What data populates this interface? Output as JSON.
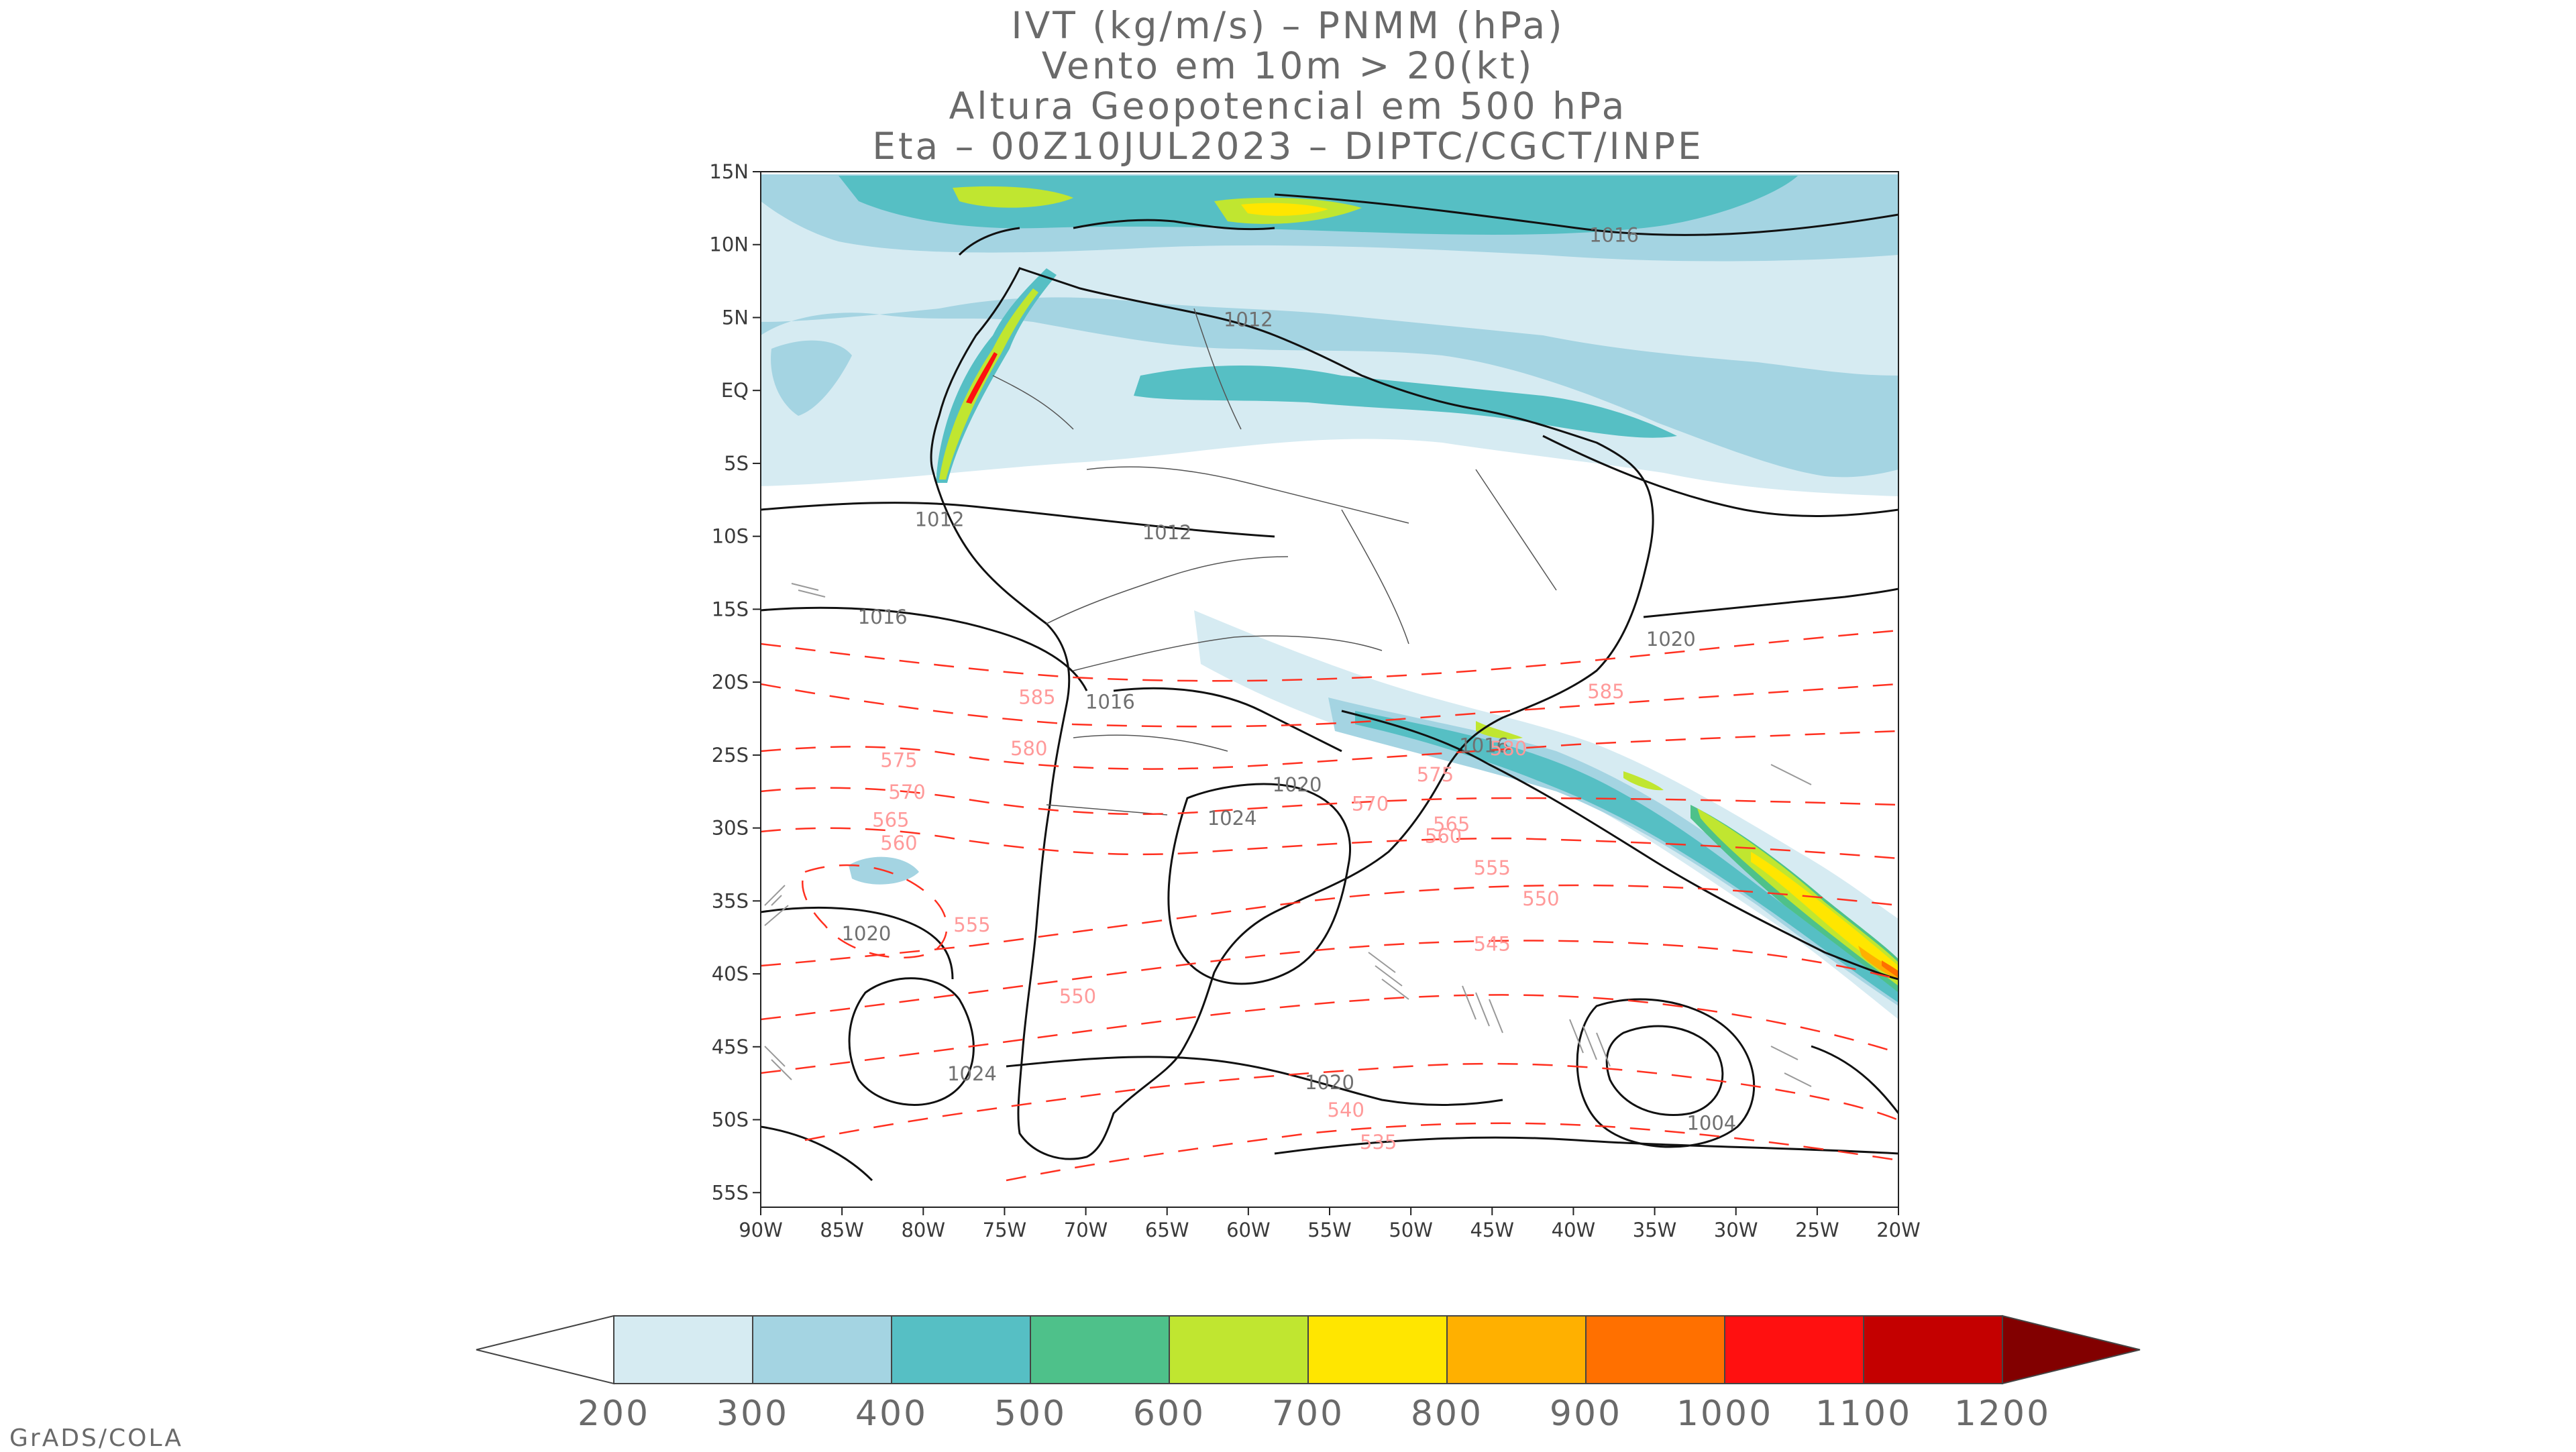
{
  "title_lines": [
    "IVT (kg/m/s) – PNMM (hPa)",
    "Vento em 10m > 20(kt)",
    "Altura Geopotencial em 500 hPa",
    "Eta – 00Z10JUL2023 – DIPTC/CGCT/INPE"
  ],
  "map": {
    "lat_ticks": [
      "15N",
      "10N",
      "5N",
      "EQ",
      "5S",
      "10S",
      "15S",
      "20S",
      "25S",
      "30S",
      "35S",
      "40S",
      "45S",
      "50S",
      "55S"
    ],
    "lon_ticks": [
      "90W",
      "85W",
      "80W",
      "75W",
      "70W",
      "65W",
      "60W",
      "55W",
      "50W",
      "45W",
      "40W",
      "35W",
      "30W",
      "25W",
      "20W"
    ],
    "lat_range": [
      15,
      -56
    ],
    "lon_range": [
      -90,
      -20
    ],
    "pressure_labels": [
      {
        "text": "1016",
        "lon": -37.5,
        "lat": 10.2
      },
      {
        "text": "1012",
        "lon": -60,
        "lat": 4.4
      },
      {
        "text": "1012",
        "lon": -79,
        "lat": -9.3
      },
      {
        "text": "1012",
        "lon": -65,
        "lat": -10.2
      },
      {
        "text": "1016",
        "lon": -82.5,
        "lat": -16
      },
      {
        "text": "1016",
        "lon": -68.5,
        "lat": -21.8
      },
      {
        "text": "1016",
        "lon": -45.5,
        "lat": -24.8
      },
      {
        "text": "1020",
        "lon": -34,
        "lat": -17.5
      },
      {
        "text": "1020",
        "lon": -57,
        "lat": -27.5
      },
      {
        "text": "1024",
        "lon": -61,
        "lat": -29.8
      },
      {
        "text": "1020",
        "lon": -83.5,
        "lat": -37.7
      },
      {
        "text": "1024",
        "lon": -77,
        "lat": -47.3
      },
      {
        "text": "1020",
        "lon": -55,
        "lat": -47.9
      },
      {
        "text": "1004",
        "lon": -31.5,
        "lat": -50.7
      }
    ],
    "height_labels": [
      {
        "text": "585",
        "lon": -73,
        "lat": -21.5
      },
      {
        "text": "585",
        "lon": -38,
        "lat": -21.1
      },
      {
        "text": "580",
        "lon": -73.5,
        "lat": -25
      },
      {
        "text": "580",
        "lon": -44,
        "lat": -25
      },
      {
        "text": "575",
        "lon": -81.5,
        "lat": -25.8
      },
      {
        "text": "575",
        "lon": -48.5,
        "lat": -26.8
      },
      {
        "text": "570",
        "lon": -81,
        "lat": -28
      },
      {
        "text": "570",
        "lon": -52.5,
        "lat": -28.8
      },
      {
        "text": "565",
        "lon": -82,
        "lat": -29.9
      },
      {
        "text": "565",
        "lon": -47.5,
        "lat": -30.2
      },
      {
        "text": "560",
        "lon": -81.5,
        "lat": -31.5
      },
      {
        "text": "560",
        "lon": -48,
        "lat": -31
      },
      {
        "text": "555",
        "lon": -77,
        "lat": -37.1
      },
      {
        "text": "555",
        "lon": -45,
        "lat": -33.2
      },
      {
        "text": "550",
        "lon": -70.5,
        "lat": -42
      },
      {
        "text": "550",
        "lon": -42,
        "lat": -35.3
      },
      {
        "text": "545",
        "lon": -45,
        "lat": -38.4
      },
      {
        "text": "540",
        "lon": -54,
        "lat": -49.8
      },
      {
        "text": "535",
        "lon": -52,
        "lat": -52
      }
    ]
  },
  "colorbar": {
    "labels": [
      "200",
      "300",
      "400",
      "500",
      "600",
      "700",
      "800",
      "900",
      "1000",
      "1100",
      "1200"
    ],
    "colors": [
      "#d6ebf2",
      "#a4d4e2",
      "#56bfc4",
      "#4ec18a",
      "#c0e630",
      "#ffe600",
      "#ffb000",
      "#ff7000",
      "#ff1010",
      "#c40000",
      "#820000"
    ]
  },
  "colors": {
    "ivt_200": "#d6ebf2",
    "ivt_300": "#a4d4e2",
    "ivt_400": "#56bfc4",
    "ivt_500": "#4ec18a",
    "ivt_600": "#c0e630",
    "ivt_700": "#ffe600",
    "ivt_800": "#ffb000",
    "ivt_900": "#ff7000",
    "ivt_1000": "#ff1010",
    "height_contour": "#ff3020",
    "height_label": "#ff9a9a",
    "pressure_label": "#707070"
  },
  "credit": "GrADS/COLA"
}
